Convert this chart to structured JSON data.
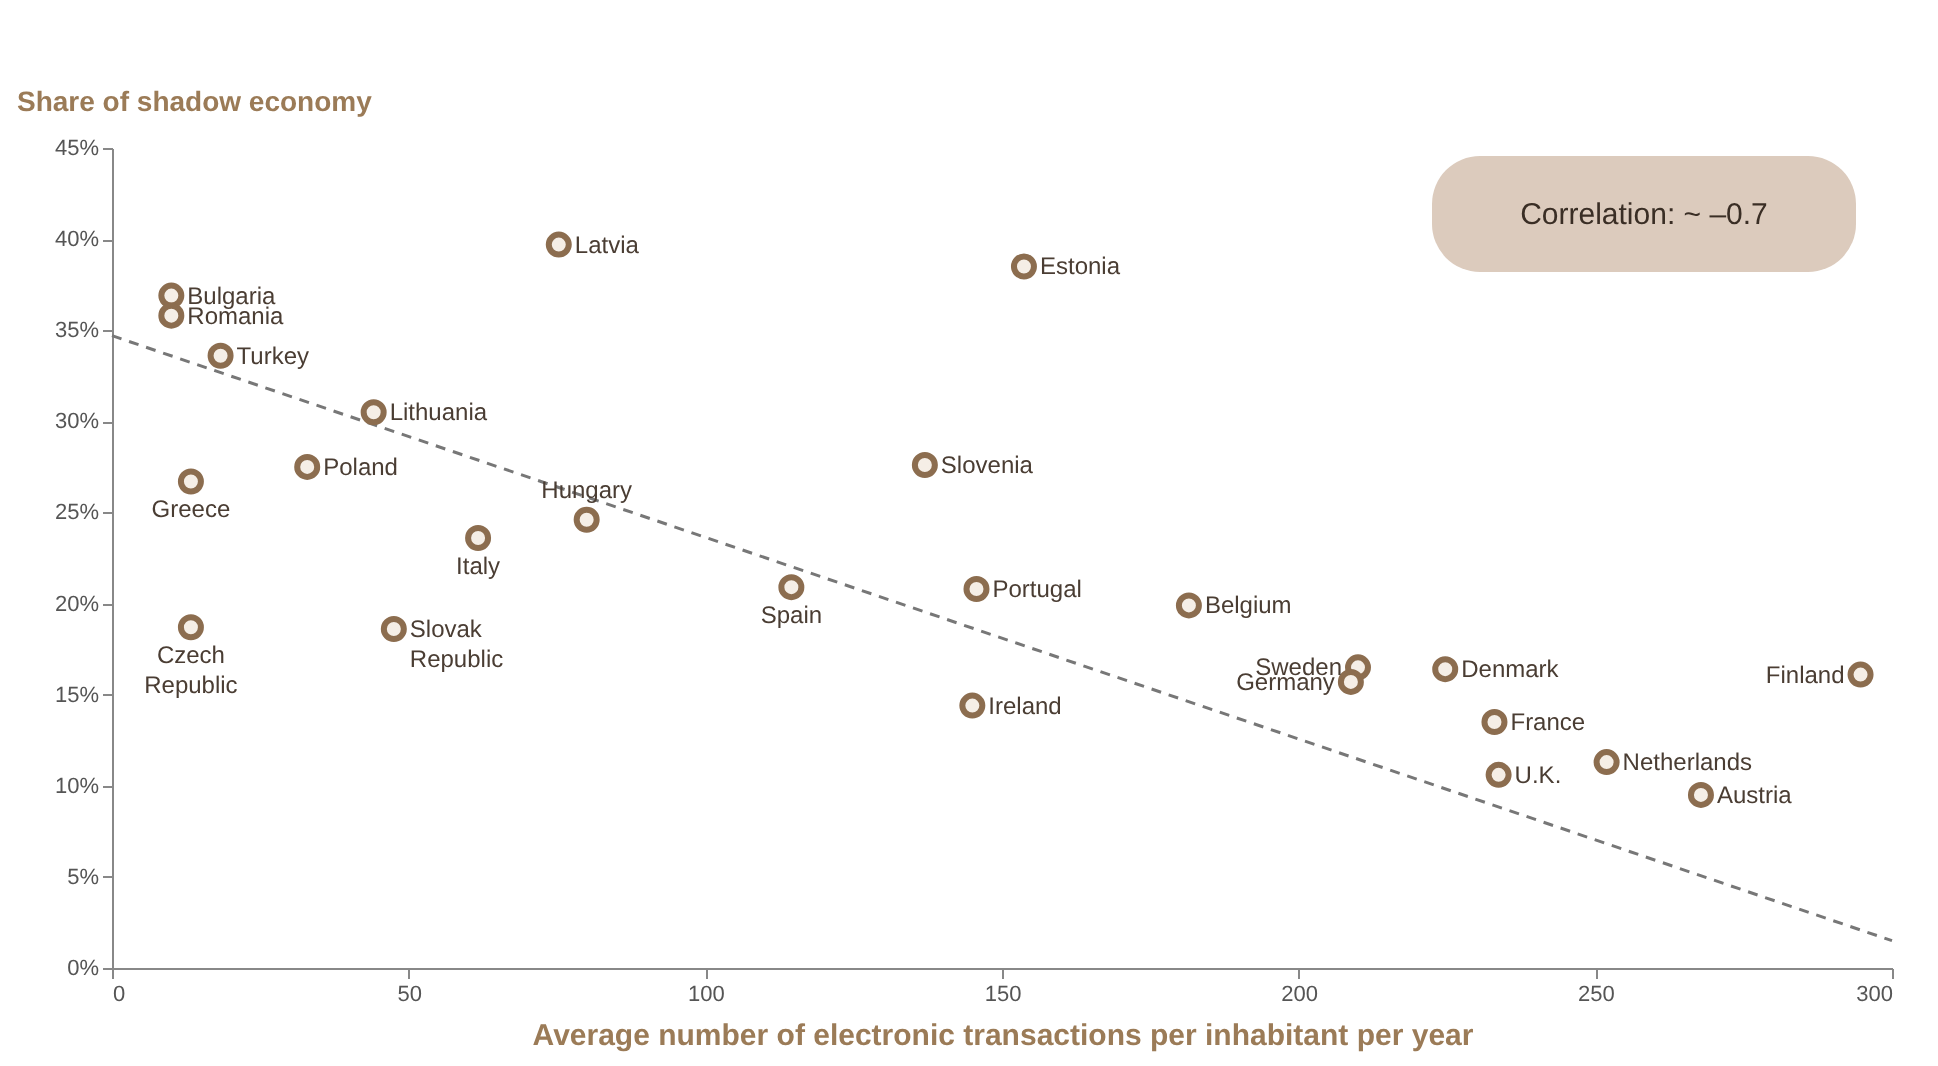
{
  "chart_data": {
    "type": "scatter",
    "xlabel": "Average number of electronic transactions per inhabitant per year",
    "ylabel": "Share of shadow economy",
    "xlim": [
      0,
      300
    ],
    "xticks": [
      0,
      50,
      100,
      150,
      200,
      250,
      300
    ],
    "ylim": [
      0,
      45
    ],
    "yticks": [
      {
        "value": 0,
        "label": "0%"
      },
      {
        "value": 5,
        "label": "5%"
      },
      {
        "value": 10,
        "label": "10%"
      },
      {
        "value": 15,
        "label": "15%"
      },
      {
        "value": 20,
        "label": "20%"
      },
      {
        "value": 25,
        "label": "25%"
      },
      {
        "value": 30,
        "label": "30%"
      },
      {
        "value": 35,
        "label": "35%"
      },
      {
        "value": 40,
        "label": "40%"
      },
      {
        "value": 45,
        "label": "45%"
      }
    ],
    "grid": false,
    "marker": "circle",
    "series": [
      {
        "type": "scatter",
        "color": "#8c6d4f",
        "x": [
          10,
          10,
          18.3,
          75.3,
          153.7,
          44.1,
          32.9,
          13.3,
          137,
          80,
          61.7,
          114.5,
          145.7,
          181.5,
          13.3,
          47.5,
          210,
          208.8,
          224.7,
          294.7,
          145,
          233,
          251.9,
          233.7,
          267.8
        ],
        "values": [
          36.9,
          35.8,
          33.6,
          39.7,
          38.5,
          30.5,
          27.5,
          26.7,
          27.6,
          24.6,
          23.6,
          20.9,
          20.8,
          19.9,
          18.7,
          18.6,
          16.5,
          15.7,
          16.4,
          16.1,
          14.4,
          13.5,
          11.3,
          10.6,
          9.5
        ]
      },
      {
        "type": "line",
        "color": "#777777",
        "line_style": "dashed",
        "marker": "none",
        "x": [
          0,
          300
        ],
        "values": [
          34.7,
          1.5
        ]
      }
    ],
    "annotations": [
      "Correlation: ~ –0.7",
      {
        "text": "Bulgaria",
        "x": 10,
        "y": 36.9
      },
      {
        "text": "Romania",
        "x": 10,
        "y": 35.8
      },
      {
        "text": "Turkey",
        "x": 18.3,
        "y": 33.6
      },
      {
        "text": "Latvia",
        "x": 75.3,
        "y": 39.7
      },
      {
        "text": "Estonia",
        "x": 153.7,
        "y": 38.5
      },
      {
        "text": "Lithuania",
        "x": 44.1,
        "y": 30.5
      },
      {
        "text": "Poland",
        "x": 32.9,
        "y": 27.5
      },
      {
        "text": "Greece",
        "x": 13.3,
        "y": 26.7
      },
      {
        "text": "Slovenia",
        "x": 137,
        "y": 27.6
      },
      {
        "text": "Hungary",
        "x": 80,
        "y": 24.6
      },
      {
        "text": "Italy",
        "x": 61.7,
        "y": 23.6
      },
      {
        "text": "Spain",
        "x": 114.5,
        "y": 20.9
      },
      {
        "text": "Portugal",
        "x": 145.7,
        "y": 20.8
      },
      {
        "text": "Belgium",
        "x": 181.5,
        "y": 19.9
      },
      {
        "text": "Czech Republic",
        "x": 13.3,
        "y": 18.7
      },
      {
        "text": "Slovak Republic",
        "x": 47.5,
        "y": 18.6
      },
      {
        "text": "Sweden",
        "x": 210,
        "y": 16.5
      },
      {
        "text": "Germany",
        "x": 208.8,
        "y": 15.7
      },
      {
        "text": "Denmark",
        "x": 224.7,
        "y": 16.4
      },
      {
        "text": "Finland",
        "x": 294.7,
        "y": 16.1
      },
      {
        "text": "Ireland",
        "x": 145,
        "y": 14.4
      },
      {
        "text": "France",
        "x": 233,
        "y": 13.5
      },
      {
        "text": "Netherlands",
        "x": 251.9,
        "y": 11.3
      },
      {
        "text": "U.K.",
        "x": 233.7,
        "y": 10.6
      },
      {
        "text": "Austria",
        "x": 267.8,
        "y": 9.5
      }
    ]
  }
}
